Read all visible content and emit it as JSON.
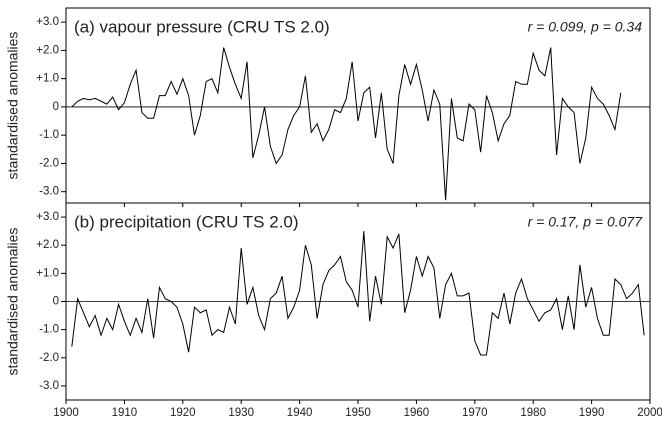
{
  "chart_data": [
    {
      "type": "line",
      "title": "(a) vapour pressure (CRU TS 2.0)",
      "annotation": "r = 0.099, p = 0.34",
      "y_label": "standardised anomalies",
      "color": "#000000",
      "x": [
        1901,
        1902,
        1903,
        1904,
        1905,
        1906,
        1907,
        1908,
        1909,
        1910,
        1911,
        1912,
        1913,
        1914,
        1915,
        1916,
        1917,
        1918,
        1919,
        1920,
        1921,
        1922,
        1923,
        1924,
        1925,
        1926,
        1927,
        1928,
        1929,
        1930,
        1931,
        1932,
        1933,
        1934,
        1935,
        1936,
        1937,
        1938,
        1939,
        1940,
        1941,
        1942,
        1943,
        1944,
        1945,
        1946,
        1947,
        1948,
        1949,
        1950,
        1951,
        1952,
        1953,
        1954,
        1955,
        1956,
        1957,
        1958,
        1959,
        1960,
        1961,
        1962,
        1963,
        1964,
        1965,
        1966,
        1967,
        1968,
        1969,
        1970,
        1971,
        1972,
        1973,
        1974,
        1975,
        1976,
        1977,
        1978,
        1979,
        1980,
        1981,
        1982,
        1983,
        1984,
        1985,
        1986,
        1987,
        1988,
        1989,
        1990,
        1991,
        1992,
        1993,
        1994,
        1995
      ],
      "values": [
        0,
        0.2,
        0.3,
        0.25,
        0.3,
        0.2,
        0.1,
        0.35,
        -0.1,
        0.15,
        0.8,
        1.3,
        -0.2,
        -0.4,
        -0.4,
        0.4,
        0.4,
        0.9,
        0.45,
        1.0,
        0.4,
        -1.0,
        -0.3,
        0.9,
        1.0,
        0.5,
        2.1,
        1.4,
        0.8,
        0.3,
        1.6,
        -1.8,
        -1.0,
        0.0,
        -1.4,
        -2.0,
        -1.7,
        -0.8,
        -0.3,
        0.0,
        1.1,
        -0.9,
        -0.6,
        -1.2,
        -0.8,
        -0.1,
        -0.2,
        0.3,
        1.6,
        -0.5,
        0.5,
        0.7,
        -1.1,
        0.5,
        -1.5,
        -2.0,
        0.4,
        1.5,
        0.8,
        1.5,
        0.6,
        -0.5,
        0.6,
        0.1,
        -3.3,
        0.3,
        -1.1,
        -1.2,
        0.1,
        -0.1,
        -1.6,
        0.4,
        -0.2,
        -1.2,
        -0.6,
        -0.3,
        0.9,
        0.8,
        0.8,
        1.9,
        1.3,
        1.1,
        2.1,
        -1.7,
        0.3,
        0.0,
        -0.2,
        -2.0,
        -1.1,
        0.7,
        0.3,
        0.1,
        -0.3,
        -0.8,
        0.5
      ],
      "xlim": [
        1900,
        2000
      ],
      "xticks": [
        1900,
        1910,
        1920,
        1930,
        1940,
        1950,
        1960,
        1970,
        1980,
        1990,
        2000
      ],
      "ylim": [
        -3.4,
        3.5
      ],
      "yticks": [
        {
          "value": 3,
          "label": "+3.0"
        },
        {
          "value": 2,
          "label": "+2.0"
        },
        {
          "value": 1,
          "label": "+1.0"
        },
        0,
        {
          "value": -1,
          "label": "-1.0"
        },
        {
          "value": -2,
          "label": "-2.0"
        },
        {
          "value": -3,
          "label": "-3.0"
        }
      ]
    },
    {
      "type": "line",
      "title": "(b) precipitation (CRU TS 2.0)",
      "annotation": "r = 0.17, p = 0.077",
      "y_label": "standardised anomalies",
      "color": "#000000",
      "x": [
        1901,
        1902,
        1903,
        1904,
        1905,
        1906,
        1907,
        1908,
        1909,
        1910,
        1911,
        1912,
        1913,
        1914,
        1915,
        1916,
        1917,
        1918,
        1919,
        1920,
        1921,
        1922,
        1923,
        1924,
        1925,
        1926,
        1927,
        1928,
        1929,
        1930,
        1931,
        1932,
        1933,
        1934,
        1935,
        1936,
        1937,
        1938,
        1939,
        1940,
        1941,
        1942,
        1943,
        1944,
        1945,
        1946,
        1947,
        1948,
        1949,
        1950,
        1951,
        1952,
        1953,
        1954,
        1955,
        1956,
        1957,
        1958,
        1959,
        1960,
        1961,
        1962,
        1963,
        1964,
        1965,
        1966,
        1967,
        1968,
        1969,
        1970,
        1971,
        1972,
        1973,
        1974,
        1975,
        1976,
        1977,
        1978,
        1979,
        1980,
        1981,
        1982,
        1983,
        1984,
        1985,
        1986,
        1987,
        1988,
        1989,
        1990,
        1991,
        1992,
        1993,
        1994,
        1995,
        1996,
        1997,
        1998,
        1999
      ],
      "values": [
        -1.6,
        0.1,
        -0.4,
        -0.9,
        -0.5,
        -1.2,
        -0.6,
        -1.0,
        -0.1,
        -0.7,
        -1.2,
        -0.6,
        -1.1,
        0.1,
        -1.3,
        0.5,
        0.1,
        0.0,
        -0.2,
        -0.8,
        -1.8,
        -0.2,
        -0.4,
        -0.3,
        -1.2,
        -1.0,
        -1.1,
        -0.2,
        -0.8,
        1.9,
        -0.1,
        0.5,
        -0.5,
        -1.0,
        0.1,
        0.3,
        0.9,
        -0.6,
        -0.2,
        0.4,
        2.0,
        1.3,
        -0.6,
        0.6,
        1.1,
        1.3,
        1.6,
        0.7,
        0.4,
        -0.2,
        2.5,
        -0.7,
        0.9,
        -0.1,
        2.3,
        1.9,
        2.4,
        -0.4,
        0.4,
        1.6,
        0.9,
        1.6,
        1.2,
        -0.6,
        0.6,
        1.0,
        0.2,
        0.2,
        0.3,
        -1.4,
        -1.9,
        -1.9,
        -0.4,
        -0.6,
        0.3,
        -0.8,
        0.3,
        0.8,
        0.1,
        -0.3,
        -0.7,
        -0.4,
        -0.3,
        0.1,
        -1.0,
        0.2,
        -1.0,
        1.3,
        -0.2,
        0.5,
        -0.6,
        -1.2,
        -1.2,
        0.8,
        0.6,
        0.1,
        0.3,
        0.6,
        -1.2
      ],
      "xlim": [
        1900,
        2000
      ],
      "xticks": [
        1900,
        1910,
        1920,
        1930,
        1940,
        1950,
        1960,
        1970,
        1980,
        1990,
        2000
      ],
      "ylim": [
        -3.5,
        3.5
      ],
      "yticks": [
        {
          "value": 3,
          "label": "+3.0"
        },
        {
          "value": 2,
          "label": "+2.0"
        },
        {
          "value": 1,
          "label": "+1.0"
        },
        0,
        {
          "value": -1,
          "label": "-1.0"
        },
        {
          "value": -2,
          "label": "-2.0"
        },
        {
          "value": -3,
          "label": "-3.0"
        }
      ]
    }
  ]
}
